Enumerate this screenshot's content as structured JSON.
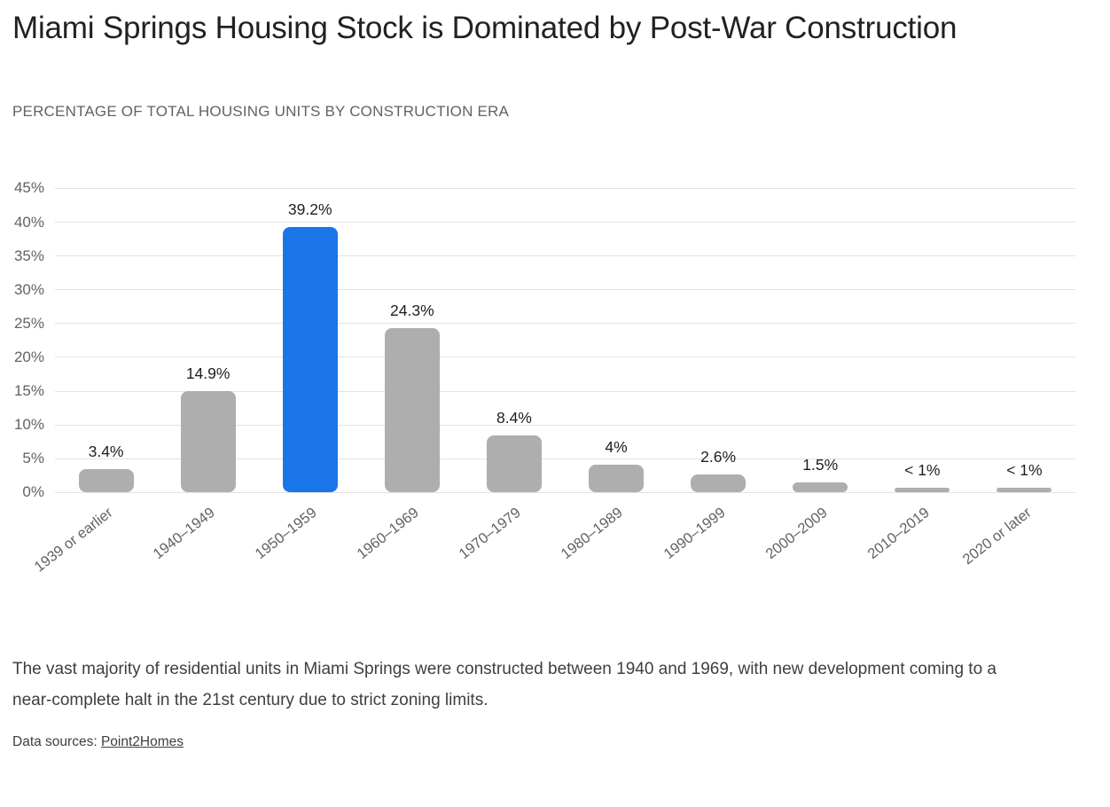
{
  "header": {
    "title": "Miami Springs Housing Stock is Dominated by Post-War Construction",
    "subtitle": "PERCENTAGE OF TOTAL HOUSING UNITS BY CONSTRUCTION ERA"
  },
  "chart_data": {
    "type": "bar",
    "title": "Miami Springs Housing Stock is Dominated by Post-War Construction",
    "subtitle": "PERCENTAGE OF TOTAL HOUSING UNITS BY CONSTRUCTION ERA",
    "categories": [
      "1939 or earlier",
      "1940–1949",
      "1950–1959",
      "1960–1969",
      "1970–1979",
      "1980–1989",
      "1990–1999",
      "2000–2009",
      "2010–2019",
      "2020 or later"
    ],
    "values": [
      3.4,
      14.9,
      39.2,
      24.3,
      8.4,
      4,
      2.6,
      1.5,
      0.6,
      0.6
    ],
    "value_labels": [
      "3.4%",
      "14.9%",
      "39.2%",
      "24.3%",
      "8.4%",
      "4%",
      "2.6%",
      "1.5%",
      "< 1%",
      "< 1%"
    ],
    "y_ticks": [
      "45%",
      "40%",
      "35%",
      "30%",
      "25%",
      "20%",
      "15%",
      "10%",
      "5%",
      "0%"
    ],
    "ylim": [
      0,
      45
    ],
    "grid": true,
    "legend": "none",
    "highlight_index": 2,
    "bar_color": "#aeaeae",
    "highlight_color": "#1a76e8",
    "gridline_color": "#e3e3e3",
    "xlabel": "",
    "ylabel": ""
  },
  "footer": {
    "note": "The vast majority of residential units in Miami Springs were constructed between 1940 and 1969, with new development coming to a near-complete halt in the 21st century due to strict zoning limits.",
    "sources_label": "Data sources:",
    "source_link": "Point2Homes"
  }
}
